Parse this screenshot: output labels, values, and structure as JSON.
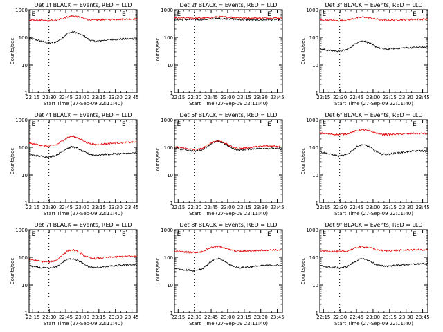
{
  "figure": {
    "background": "#ffffff",
    "events_color": "#000000",
    "lld_color": "#e00000",
    "axis_color": "#000000"
  },
  "chart_data": [
    {
      "type": "line",
      "title": "Det 1f BLACK = Events, RED = LLD",
      "xlabel": "Start Time (27-Sep-09 22:11:40)",
      "ylabel": "Counts/sec",
      "x_ticks": [
        "22:15",
        "22:30",
        "22:45",
        "23:00",
        "23:15",
        "23:30",
        "23:45"
      ],
      "y_ticks": [
        "1",
        "10",
        "100",
        "1000"
      ],
      "y_scale": "log",
      "ylim": [
        1,
        1000
      ],
      "xlim_minutes": [
        0,
        98
      ],
      "vlines_minutes": [
        18,
        98
      ],
      "markers": [
        {
          "text": "E",
          "at_minutes": 4
        },
        {
          "text": "E",
          "at_minutes": 86
        }
      ],
      "series": [
        {
          "name": "Events",
          "color": "#000000",
          "x": [
            0,
            10,
            18,
            25,
            30,
            35,
            40,
            45,
            50,
            55,
            60,
            70,
            80,
            90,
            98
          ],
          "y": [
            95,
            75,
            62,
            70,
            95,
            140,
            160,
            140,
            110,
            80,
            72,
            80,
            85,
            88,
            90
          ]
        },
        {
          "name": "LLD",
          "color": "#e00000",
          "x": [
            0,
            10,
            18,
            25,
            30,
            35,
            40,
            45,
            50,
            55,
            60,
            70,
            80,
            90,
            98
          ],
          "y": [
            420,
            410,
            400,
            420,
            480,
            560,
            600,
            560,
            480,
            430,
            420,
            440,
            450,
            460,
            470
          ]
        }
      ]
    },
    {
      "type": "line",
      "title": "Det 2f BLACK = Events, RED = LLD",
      "xlabel": "Start Time (27-Sep-09 22:11:40)",
      "ylabel": "Counts/sec",
      "x_ticks": [
        "22:15",
        "22:30",
        "22:45",
        "23:00",
        "23:15",
        "23:30",
        "23:45"
      ],
      "y_ticks": [
        "1",
        "10",
        "100",
        "1000"
      ],
      "y_scale": "log",
      "ylim": [
        1,
        1000
      ],
      "xlim_minutes": [
        0,
        98
      ],
      "vlines_minutes": [
        18,
        98
      ],
      "markers": [
        {
          "text": "E",
          "at_minutes": 4
        },
        {
          "text": "E",
          "at_minutes": 86
        }
      ],
      "series": [
        {
          "name": "Events",
          "color": "#000000",
          "x": [
            0,
            10,
            20,
            30,
            40,
            50,
            60,
            70,
            80,
            90,
            98
          ],
          "y": [
            440,
            440,
            440,
            450,
            480,
            470,
            440,
            430,
            430,
            440,
            440
          ]
        },
        {
          "name": "LLD",
          "color": "#e00000",
          "x": [
            0,
            10,
            20,
            30,
            40,
            50,
            60,
            70,
            80,
            90,
            98
          ],
          "y": [
            500,
            500,
            500,
            510,
            560,
            540,
            510,
            500,
            500,
            510,
            510
          ]
        }
      ]
    },
    {
      "type": "line",
      "title": "Det 3f BLACK = Events, RED = LLD",
      "xlabel": "Start Time (27-Sep-09 22:11:40)",
      "ylabel": "Counts/sec",
      "x_ticks": [
        "22:15",
        "22:30",
        "22:45",
        "23:00",
        "23:15",
        "23:30",
        "23:45"
      ],
      "y_ticks": [
        "1",
        "10",
        "100",
        "1000"
      ],
      "y_scale": "log",
      "ylim": [
        1,
        1000
      ],
      "xlim_minutes": [
        0,
        98
      ],
      "vlines_minutes": [
        18,
        98
      ],
      "markers": [
        {
          "text": "E",
          "at_minutes": 4
        },
        {
          "text": "E",
          "at_minutes": 86
        }
      ],
      "series": [
        {
          "name": "Events",
          "color": "#000000",
          "x": [
            0,
            10,
            18,
            25,
            30,
            35,
            40,
            45,
            50,
            55,
            60,
            70,
            80,
            90,
            98
          ],
          "y": [
            38,
            33,
            32,
            36,
            50,
            70,
            75,
            62,
            48,
            40,
            37,
            40,
            42,
            44,
            45
          ]
        },
        {
          "name": "LLD",
          "color": "#e00000",
          "x": [
            0,
            10,
            18,
            25,
            30,
            35,
            40,
            45,
            50,
            55,
            60,
            70,
            80,
            90,
            98
          ],
          "y": [
            420,
            410,
            400,
            420,
            470,
            520,
            540,
            510,
            470,
            430,
            420,
            430,
            440,
            450,
            460
          ]
        }
      ]
    },
    {
      "type": "line",
      "title": "Det 4f BLACK = Events, RED = LLD",
      "xlabel": "Start Time (27-Sep-09 22:11:40)",
      "ylabel": "Counts/sec",
      "x_ticks": [
        "22:15",
        "22:30",
        "22:45",
        "23:00",
        "23:15",
        "23:30",
        "23:45"
      ],
      "y_ticks": [
        "1",
        "10",
        "100",
        "1000"
      ],
      "y_scale": "log",
      "ylim": [
        1,
        1000
      ],
      "xlim_minutes": [
        0,
        98
      ],
      "vlines_minutes": [
        18,
        98
      ],
      "markers": [
        {
          "text": "E",
          "at_minutes": 4
        },
        {
          "text": "E",
          "at_minutes": 86
        }
      ],
      "series": [
        {
          "name": "Events",
          "color": "#000000",
          "x": [
            0,
            10,
            18,
            25,
            30,
            35,
            40,
            45,
            50,
            55,
            60,
            70,
            80,
            90,
            98
          ],
          "y": [
            55,
            48,
            45,
            52,
            70,
            95,
            105,
            88,
            68,
            56,
            52,
            56,
            58,
            60,
            62
          ]
        },
        {
          "name": "LLD",
          "color": "#e00000",
          "x": [
            0,
            10,
            18,
            25,
            30,
            35,
            40,
            45,
            50,
            55,
            60,
            70,
            80,
            90,
            98
          ],
          "y": [
            140,
            120,
            110,
            125,
            170,
            230,
            250,
            215,
            165,
            135,
            125,
            135,
            145,
            150,
            155
          ]
        }
      ]
    },
    {
      "type": "line",
      "title": "Det 5f BLACK = Events, RED = LLD",
      "xlabel": "Start Time (27-Sep-09 22:11:40)",
      "ylabel": "Counts/sec",
      "x_ticks": [
        "22:15",
        "22:30",
        "22:45",
        "23:00",
        "23:15",
        "23:30",
        "23:45"
      ],
      "y_ticks": [
        "1",
        "10",
        "100",
        "1000"
      ],
      "y_scale": "log",
      "ylim": [
        1,
        1000
      ],
      "xlim_minutes": [
        0,
        98
      ],
      "vlines_minutes": [
        18,
        98
      ],
      "markers": [
        {
          "text": "E",
          "at_minutes": 4
        },
        {
          "text": "E",
          "at_minutes": 86
        }
      ],
      "series": [
        {
          "name": "Events",
          "color": "#000000",
          "x": [
            0,
            10,
            18,
            25,
            30,
            35,
            40,
            45,
            50,
            55,
            60,
            70,
            80,
            90,
            98
          ],
          "y": [
            95,
            82,
            72,
            80,
            110,
            150,
            165,
            140,
            105,
            85,
            80,
            88,
            92,
            90,
            88
          ]
        },
        {
          "name": "LLD",
          "color": "#e00000",
          "x": [
            0,
            10,
            18,
            25,
            30,
            35,
            40,
            45,
            50,
            55,
            60,
            70,
            80,
            90,
            98
          ],
          "y": [
            105,
            92,
            82,
            90,
            120,
            160,
            175,
            150,
            115,
            95,
            90,
            100,
            110,
            112,
            108
          ]
        }
      ]
    },
    {
      "type": "line",
      "title": "Det 6f BLACK = Events, RED = LLD",
      "xlabel": "Start Time (27-Sep-09 22:11:40)",
      "ylabel": "Counts/sec",
      "x_ticks": [
        "22:15",
        "22:30",
        "22:45",
        "23:00",
        "23:15",
        "23:30",
        "23:45"
      ],
      "y_ticks": [
        "1",
        "10",
        "100",
        "1000"
      ],
      "y_scale": "log",
      "ylim": [
        1,
        1000
      ],
      "xlim_minutes": [
        0,
        98
      ],
      "vlines_minutes": [
        18,
        98
      ],
      "markers": [
        {
          "text": "E",
          "at_minutes": 4
        },
        {
          "text": "E",
          "at_minutes": 86
        }
      ],
      "series": [
        {
          "name": "Events",
          "color": "#000000",
          "x": [
            0,
            10,
            18,
            25,
            30,
            35,
            40,
            45,
            50,
            55,
            60,
            70,
            80,
            90,
            98
          ],
          "y": [
            70,
            55,
            48,
            55,
            80,
            115,
            125,
            105,
            75,
            58,
            55,
            62,
            70,
            75,
            72
          ]
        },
        {
          "name": "LLD",
          "color": "#e00000",
          "x": [
            0,
            10,
            18,
            25,
            30,
            35,
            40,
            45,
            50,
            55,
            60,
            70,
            80,
            90,
            98
          ],
          "y": [
            330,
            300,
            290,
            310,
            360,
            410,
            430,
            390,
            340,
            300,
            290,
            300,
            310,
            320,
            310
          ]
        }
      ]
    },
    {
      "type": "line",
      "title": "Det 7f BLACK = Events, RED = LLD",
      "xlabel": "Start Time (27-Sep-09 22:11:40)",
      "ylabel": "Counts/sec",
      "x_ticks": [
        "22:15",
        "22:30",
        "22:45",
        "23:00",
        "23:15",
        "23:30",
        "23:45"
      ],
      "y_ticks": [
        "1",
        "10",
        "100",
        "1000"
      ],
      "y_scale": "log",
      "ylim": [
        1,
        1000
      ],
      "xlim_minutes": [
        0,
        98
      ],
      "vlines_minutes": [
        18,
        98
      ],
      "markers": [
        {
          "text": "E",
          "at_minutes": 4
        },
        {
          "text": "E",
          "at_minutes": 86
        }
      ],
      "series": [
        {
          "name": "Events",
          "color": "#000000",
          "x": [
            0,
            10,
            18,
            25,
            30,
            35,
            40,
            45,
            50,
            55,
            60,
            70,
            80,
            90,
            98
          ],
          "y": [
            50,
            42,
            40,
            45,
            65,
            85,
            90,
            75,
            55,
            45,
            42,
            46,
            50,
            55,
            52
          ]
        },
        {
          "name": "LLD",
          "color": "#e00000",
          "x": [
            0,
            10,
            18,
            25,
            30,
            35,
            40,
            45,
            50,
            55,
            60,
            70,
            80,
            90,
            98
          ],
          "y": [
            85,
            72,
            68,
            78,
            120,
            170,
            185,
            155,
            115,
            95,
            90,
            100,
            105,
            110,
            108
          ]
        }
      ]
    },
    {
      "type": "line",
      "title": "Det 8f BLACK = Events, RED = LLD",
      "xlabel": "Start Time (27-Sep-09 22:11:40)",
      "ylabel": "Counts/sec",
      "x_ticks": [
        "22:15",
        "22:30",
        "22:45",
        "23:00",
        "23:15",
        "23:30",
        "23:45"
      ],
      "y_ticks": [
        "1",
        "10",
        "100",
        "1000"
      ],
      "y_scale": "log",
      "ylim": [
        1,
        1000
      ],
      "xlim_minutes": [
        0,
        98
      ],
      "vlines_minutes": [
        18,
        98
      ],
      "markers": [
        {
          "text": "E",
          "at_minutes": 4
        },
        {
          "text": "E",
          "at_minutes": 86
        }
      ],
      "series": [
        {
          "name": "Events",
          "color": "#000000",
          "x": [
            0,
            10,
            18,
            25,
            30,
            35,
            40,
            45,
            50,
            55,
            60,
            70,
            80,
            90,
            98
          ],
          "y": [
            40,
            35,
            33,
            38,
            55,
            80,
            90,
            75,
            55,
            45,
            42,
            46,
            50,
            52,
            50
          ]
        },
        {
          "name": "LLD",
          "color": "#e00000",
          "x": [
            0,
            10,
            18,
            25,
            30,
            35,
            40,
            45,
            50,
            55,
            60,
            70,
            80,
            90,
            98
          ],
          "y": [
            165,
            155,
            150,
            160,
            200,
            240,
            250,
            225,
            190,
            170,
            165,
            170,
            180,
            185,
            180
          ]
        }
      ]
    },
    {
      "type": "line",
      "title": "Det 9f BLACK = Events, RED = LLD",
      "xlabel": "Start Time (27-Sep-09 22:11:40)",
      "ylabel": "Counts/sec",
      "x_ticks": [
        "22:15",
        "22:30",
        "22:45",
        "23:00",
        "23:15",
        "23:30",
        "23:45"
      ],
      "y_ticks": [
        "1",
        "10",
        "100",
        "1000"
      ],
      "y_scale": "log",
      "ylim": [
        1,
        1000
      ],
      "xlim_minutes": [
        0,
        98
      ],
      "vlines_minutes": [
        18,
        98
      ],
      "markers": [
        {
          "text": "E",
          "at_minutes": 4
        },
        {
          "text": "E",
          "at_minutes": 86
        }
      ],
      "series": [
        {
          "name": "Events",
          "color": "#000000",
          "x": [
            0,
            10,
            18,
            25,
            30,
            35,
            40,
            45,
            50,
            55,
            60,
            70,
            80,
            90,
            98
          ],
          "y": [
            50,
            44,
            42,
            46,
            62,
            82,
            88,
            75,
            58,
            50,
            48,
            52,
            55,
            58,
            58
          ]
        },
        {
          "name": "LLD",
          "color": "#e00000",
          "x": [
            0,
            10,
            18,
            25,
            30,
            35,
            40,
            45,
            50,
            55,
            60,
            70,
            80,
            90,
            98
          ],
          "y": [
            175,
            165,
            160,
            168,
            200,
            235,
            245,
            225,
            195,
            178,
            172,
            178,
            185,
            188,
            182
          ]
        }
      ]
    }
  ]
}
